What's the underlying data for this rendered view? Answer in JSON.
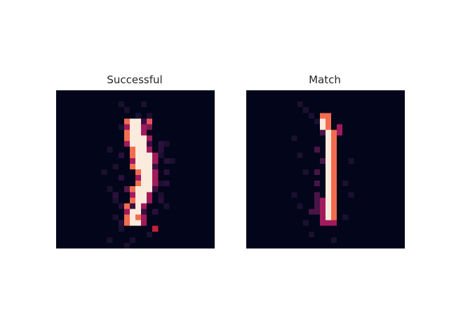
{
  "panels": [
    {
      "title": "Successful",
      "grid_size": 28,
      "colormap": "rocket",
      "colors": {
        "background": "#03051a",
        "low": "#3b0f41",
        "mid": "#a11a5b",
        "high": "#f26c4f",
        "peak": "#faebdd"
      },
      "bright_rows": [
        [
          0,
          0,
          0,
          0,
          0,
          0,
          0,
          0,
          0,
          0,
          0,
          0,
          0,
          0,
          0,
          0,
          0,
          0,
          0,
          0,
          0,
          0,
          0,
          0,
          0,
          0,
          0,
          0
        ],
        [
          0,
          0,
          0,
          0,
          0,
          0,
          0,
          0,
          0,
          0,
          0,
          0,
          0,
          0,
          0,
          0,
          0,
          0,
          0,
          0,
          0,
          0,
          0,
          0,
          0,
          0,
          0,
          0
        ],
        [
          0,
          0,
          0,
          0,
          0,
          0,
          0,
          0,
          0,
          0,
          0,
          0,
          0,
          0,
          0,
          0,
          0,
          0,
          0,
          0,
          0,
          0,
          0,
          0,
          0,
          0,
          0,
          0
        ],
        [
          0,
          0,
          0,
          0,
          0,
          0,
          0,
          0,
          0,
          0,
          0,
          0,
          0,
          0,
          0,
          0,
          0,
          0,
          0,
          0,
          0,
          0,
          0,
          0,
          0,
          0,
          0,
          0
        ],
        [
          0,
          0,
          0,
          0,
          0,
          0,
          0,
          0,
          0,
          0,
          0,
          0,
          0,
          0,
          0,
          0,
          0,
          0,
          0,
          0,
          0,
          0,
          0,
          0,
          0,
          0,
          0,
          0
        ],
        [
          0,
          0,
          0,
          0,
          0,
          0,
          0,
          0,
          0,
          0,
          0,
          0,
          12,
          13,
          14,
          15,
          0,
          0,
          0,
          0,
          0,
          0,
          0,
          0,
          0,
          0,
          0,
          0
        ],
        [
          0,
          0,
          0,
          0,
          0,
          0,
          0,
          0,
          0,
          0,
          0,
          0,
          12,
          13,
          14,
          15,
          0,
          0,
          0,
          0,
          0,
          0,
          0,
          0,
          0,
          0,
          0,
          0
        ],
        [
          0,
          0,
          0,
          0,
          0,
          0,
          0,
          0,
          0,
          0,
          0,
          0,
          12,
          13,
          14,
          15,
          0,
          0,
          0,
          0,
          0,
          0,
          0,
          0,
          0,
          0,
          0,
          0
        ],
        [
          0,
          0,
          0,
          0,
          0,
          0,
          0,
          0,
          0,
          0,
          0,
          0,
          12,
          13,
          14,
          15,
          16,
          0,
          0,
          0,
          0,
          0,
          0,
          0,
          0,
          0,
          0,
          0
        ],
        [
          0,
          0,
          0,
          0,
          0,
          0,
          0,
          0,
          0,
          0,
          0,
          0,
          12,
          13,
          14,
          15,
          16,
          0,
          0,
          0,
          0,
          0,
          0,
          0,
          0,
          0,
          0,
          0
        ],
        [
          0,
          0,
          0,
          0,
          0,
          0,
          0,
          0,
          0,
          0,
          0,
          0,
          0,
          13,
          14,
          15,
          16,
          0,
          0,
          0,
          0,
          0,
          0,
          0,
          0,
          0,
          0,
          0
        ],
        [
          0,
          0,
          0,
          0,
          0,
          0,
          0,
          0,
          0,
          0,
          0,
          0,
          0,
          13,
          14,
          15,
          16,
          17,
          0,
          0,
          0,
          0,
          0,
          0,
          0,
          0,
          0,
          0
        ],
        [
          0,
          0,
          0,
          0,
          0,
          0,
          0,
          0,
          0,
          0,
          0,
          0,
          0,
          13,
          14,
          15,
          16,
          17,
          0,
          0,
          0,
          0,
          0,
          0,
          0,
          0,
          0,
          0
        ],
        [
          0,
          0,
          0,
          0,
          0,
          0,
          0,
          0,
          0,
          0,
          0,
          0,
          0,
          13,
          14,
          15,
          16,
          17,
          0,
          0,
          0,
          0,
          0,
          0,
          0,
          0,
          0,
          0
        ],
        [
          0,
          0,
          0,
          0,
          0,
          0,
          0,
          0,
          0,
          0,
          0,
          0,
          0,
          0,
          14,
          15,
          16,
          17,
          0,
          0,
          0,
          0,
          0,
          0,
          0,
          0,
          0,
          0
        ],
        [
          0,
          0,
          0,
          0,
          0,
          0,
          0,
          0,
          0,
          0,
          0,
          0,
          0,
          0,
          14,
          15,
          16,
          17,
          0,
          0,
          0,
          0,
          0,
          0,
          0,
          0,
          0,
          0
        ],
        [
          0,
          0,
          0,
          0,
          0,
          0,
          0,
          0,
          0,
          0,
          0,
          0,
          0,
          0,
          14,
          15,
          16,
          17,
          0,
          0,
          0,
          0,
          0,
          0,
          0,
          0,
          0,
          0
        ],
        [
          0,
          0,
          0,
          0,
          0,
          0,
          0,
          0,
          0,
          0,
          0,
          0,
          0,
          13,
          14,
          15,
          16,
          17,
          0,
          0,
          0,
          0,
          0,
          0,
          0,
          0,
          0,
          0
        ],
        [
          0,
          0,
          0,
          0,
          0,
          0,
          0,
          0,
          0,
          0,
          0,
          0,
          0,
          13,
          14,
          15,
          16,
          0,
          0,
          0,
          0,
          0,
          0,
          0,
          0,
          0,
          0,
          0
        ],
        [
          0,
          0,
          0,
          0,
          0,
          0,
          0,
          0,
          0,
          0,
          0,
          0,
          0,
          13,
          14,
          15,
          16,
          0,
          0,
          0,
          0,
          0,
          0,
          0,
          0,
          0,
          0,
          0
        ],
        [
          0,
          0,
          0,
          0,
          0,
          0,
          0,
          0,
          0,
          0,
          0,
          0,
          12,
          13,
          14,
          15,
          0,
          0,
          0,
          0,
          0,
          0,
          0,
          0,
          0,
          0,
          0,
          0
        ],
        [
          0,
          0,
          0,
          0,
          0,
          0,
          0,
          0,
          0,
          0,
          0,
          0,
          12,
          13,
          14,
          15,
          0,
          0,
          0,
          0,
          0,
          0,
          0,
          0,
          0,
          0,
          0,
          0
        ],
        [
          0,
          0,
          0,
          0,
          0,
          0,
          0,
          0,
          0,
          0,
          0,
          0,
          12,
          13,
          14,
          15,
          0,
          0,
          0,
          0,
          0,
          0,
          0,
          0,
          0,
          0,
          0,
          0
        ],
        [
          0,
          0,
          0,
          0,
          0,
          0,
          0,
          0,
          0,
          0,
          0,
          0,
          12,
          13,
          14,
          15,
          0,
          0,
          0,
          0,
          0,
          0,
          0,
          0,
          0,
          0,
          0,
          0
        ],
        [
          0,
          0,
          0,
          0,
          0,
          0,
          0,
          0,
          0,
          0,
          0,
          0,
          0,
          0,
          0,
          0,
          0,
          0,
          0,
          0,
          0,
          0,
          0,
          0,
          0,
          0,
          0,
          0
        ],
        [
          0,
          0,
          0,
          0,
          0,
          0,
          0,
          0,
          0,
          0,
          0,
          0,
          0,
          0,
          0,
          0,
          0,
          0,
          0,
          0,
          0,
          0,
          0,
          0,
          0,
          0,
          0,
          0
        ],
        [
          0,
          0,
          0,
          0,
          0,
          0,
          0,
          0,
          0,
          0,
          0,
          0,
          0,
          0,
          0,
          0,
          0,
          0,
          0,
          0,
          0,
          0,
          0,
          0,
          0,
          0,
          0,
          0
        ],
        [
          0,
          0,
          0,
          0,
          0,
          0,
          0,
          0,
          0,
          0,
          0,
          0,
          0,
          0,
          0,
          0,
          0,
          0,
          0,
          0,
          0,
          0,
          0,
          0,
          0,
          0,
          0,
          0
        ]
      ]
    },
    {
      "title": "Match",
      "grid_size": 28,
      "colormap": "rocket",
      "colors": {
        "background": "#03051a",
        "low": "#3b0f41",
        "mid": "#a11a5b",
        "high": "#f26c4f",
        "peak": "#faebdd"
      }
    }
  ]
}
